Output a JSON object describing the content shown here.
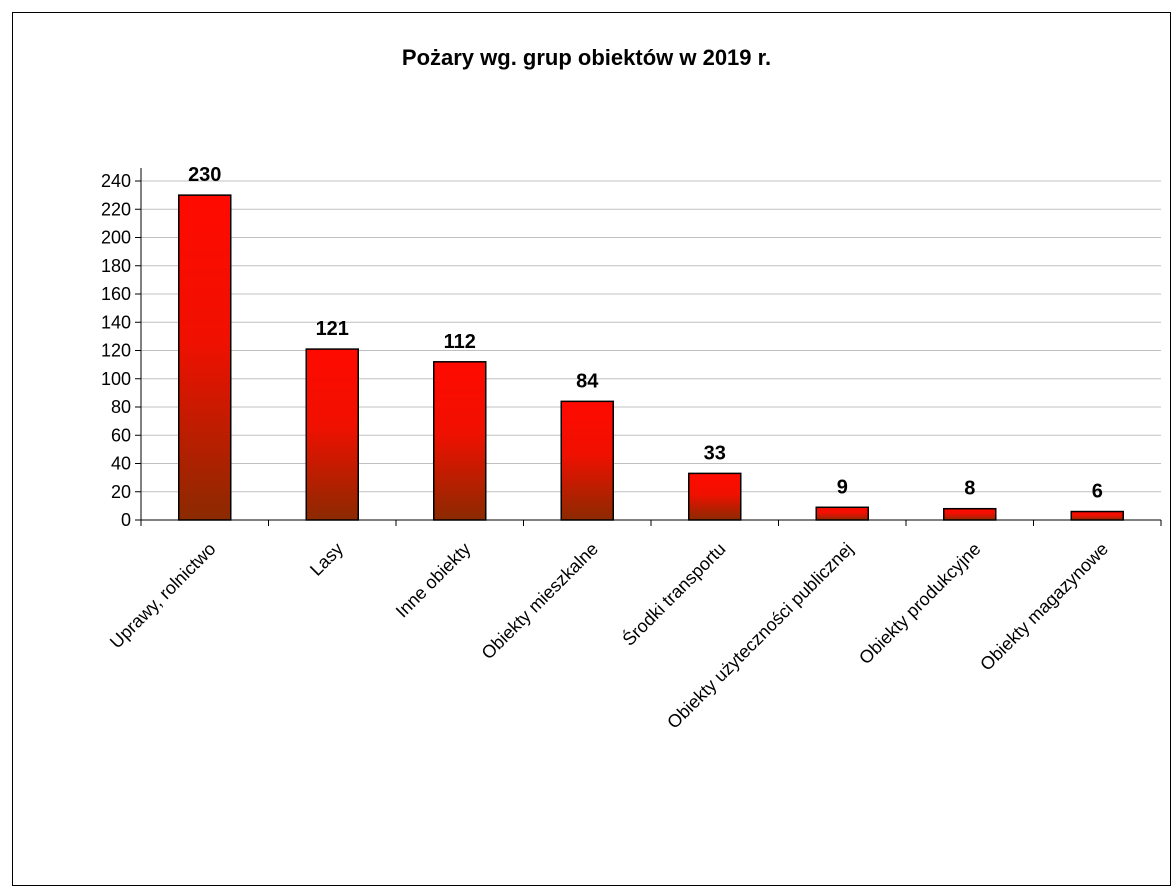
{
  "chart_data": {
    "type": "bar",
    "title": "Pożary wg. grup obiektów w 2019 r.",
    "xlabel": "",
    "ylabel": "",
    "ylim": [
      0,
      240
    ],
    "yticks": [
      0,
      20,
      40,
      60,
      80,
      100,
      120,
      140,
      160,
      180,
      200,
      220,
      240
    ],
    "grid": true,
    "legend": "none",
    "categories": [
      "Uprawy, rolnictwo",
      "Lasy",
      "Inne obiekty",
      "Obiekty mieszkalne",
      "Środki transportu",
      "Obiekty użyteczności publicznej",
      "Obiekty produkcyjne",
      "Obiekty magazynowe"
    ],
    "values": [
      230,
      121,
      112,
      84,
      33,
      9,
      8,
      6
    ],
    "data_labels": [
      "230",
      "121",
      "112",
      "84",
      "33",
      "9",
      "8",
      "6"
    ],
    "colors": {
      "bar_top": "#ff0a00",
      "bar_bottom": "#8b2a00",
      "bar_outline": "#000000",
      "grid": "#c0c0c0",
      "axis": "#000000"
    }
  }
}
